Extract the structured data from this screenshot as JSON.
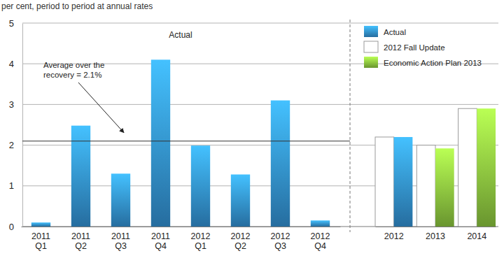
{
  "chart_data": [
    {
      "type": "bar",
      "title": "Actual",
      "y_label": "per cent, period to period at annual rates",
      "categories": [
        "2011 Q1",
        "2011 Q2",
        "2011 Q3",
        "2011 Q4",
        "2012 Q1",
        "2012 Q2",
        "2012 Q3",
        "2012 Q4"
      ],
      "values": [
        0.1,
        2.48,
        1.3,
        4.1,
        1.99,
        1.28,
        3.1,
        0.15
      ],
      "color": "#3391d4",
      "ylim": [
        0,
        5
      ],
      "yticks": [
        0,
        1,
        2,
        3,
        4,
        5
      ],
      "grid": true,
      "reference_line": {
        "value": 2.1,
        "label": "Average over the recovery = 2.1%"
      }
    },
    {
      "type": "bar",
      "categories": [
        "2012",
        "2013",
        "2014"
      ],
      "series": [
        {
          "name": "Actual",
          "color": "#3391d4",
          "values": [
            2.2,
            null,
            null
          ]
        },
        {
          "name": "2012 Fall Update",
          "color": "#ffffff",
          "values": [
            2.2,
            2.0,
            2.9
          ]
        },
        {
          "name": "Economic Action Plan 2013",
          "color": "#8cc63f",
          "values": [
            null,
            1.92,
            2.9
          ]
        }
      ],
      "ylim": [
        0,
        5
      ],
      "yticks": [
        0,
        1,
        2,
        3,
        4,
        5
      ],
      "grid": true,
      "legend": "upper right",
      "tick_labels": "x"
    }
  ]
}
